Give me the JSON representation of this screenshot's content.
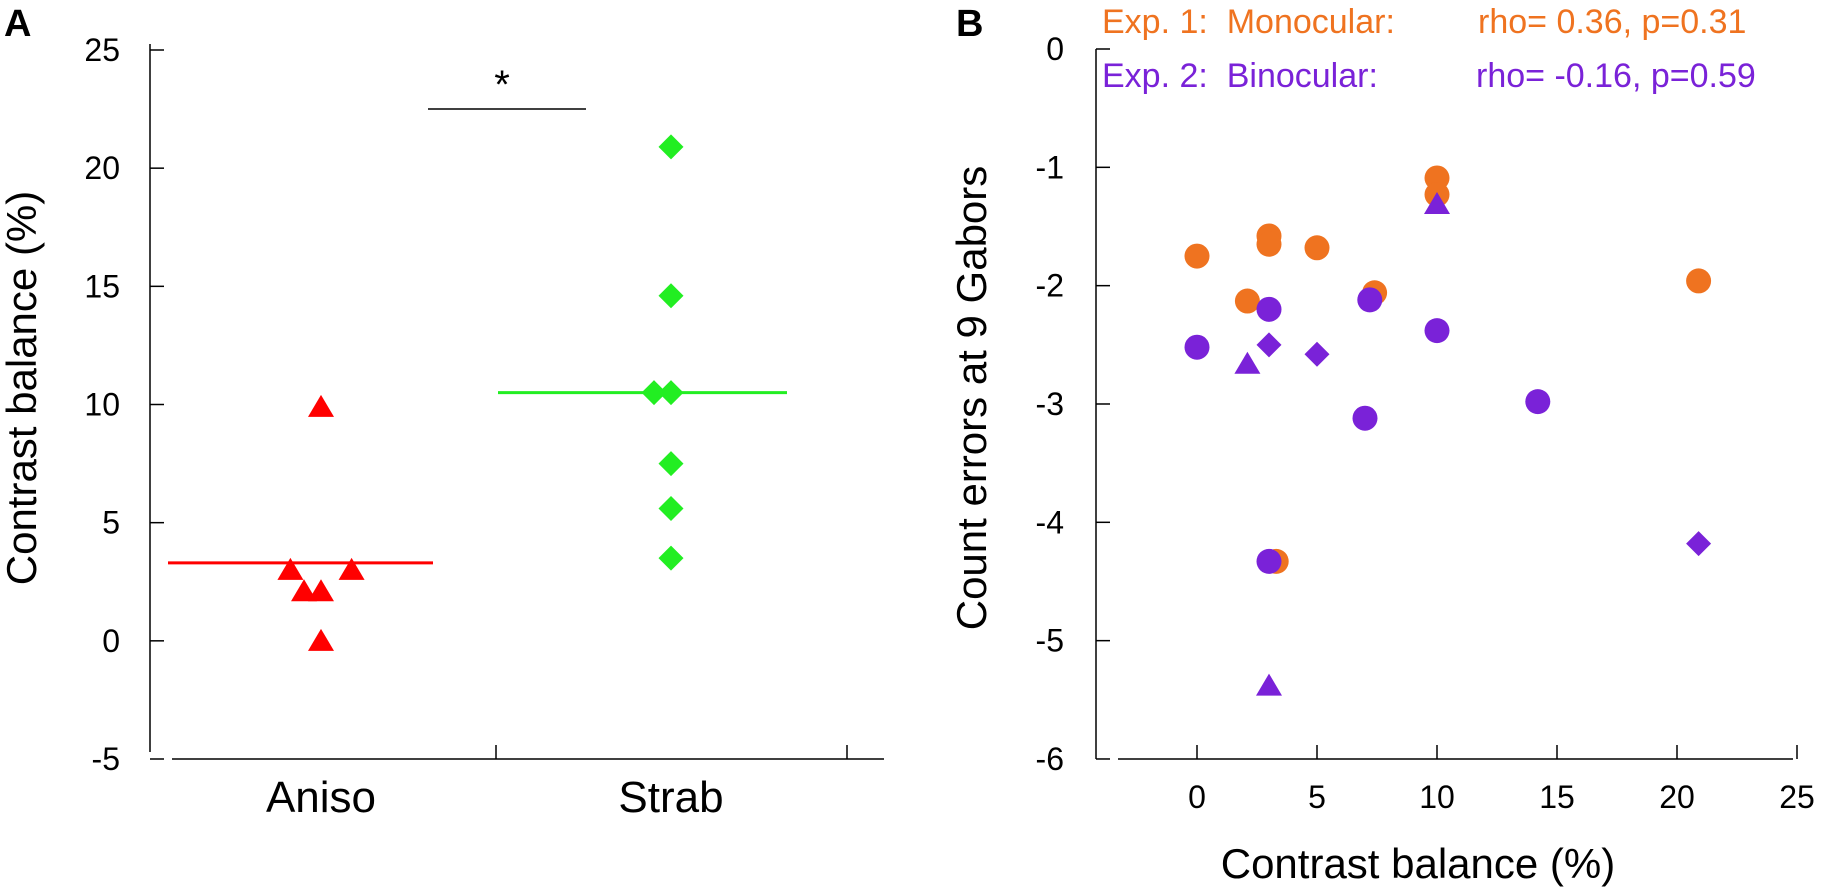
{
  "chart_data": [
    {
      "panel": "A",
      "type": "scatter",
      "title": "",
      "xlabel": "",
      "ylabel": "Contrast balance (%)",
      "ylim": [
        -5,
        25
      ],
      "yticks": [
        "-5",
        "0",
        "5",
        "10",
        "15",
        "20",
        "25"
      ],
      "categories": [
        "Aniso",
        "Strab"
      ],
      "significance": "*",
      "series": [
        {
          "name": "Aniso",
          "marker": "triangle",
          "color": "#ff0000",
          "points": [
            {
              "x": 0.0,
              "y": 9.9
            },
            {
              "x": -0.45,
              "y": 3.0
            },
            {
              "x": 0.45,
              "y": 3.0
            },
            {
              "x": -0.25,
              "y": 2.1
            },
            {
              "x": 0.0,
              "y": 2.1
            },
            {
              "x": 0.0,
              "y": 0.0
            }
          ],
          "mean": 3.3
        },
        {
          "name": "Strab",
          "marker": "diamond",
          "color": "#22ee22",
          "points": [
            {
              "x": 0.0,
              "y": 20.9
            },
            {
              "x": 0.0,
              "y": 14.6
            },
            {
              "x": -0.25,
              "y": 10.5
            },
            {
              "x": 0.0,
              "y": 10.5
            },
            {
              "x": 0.0,
              "y": 7.5
            },
            {
              "x": 0.0,
              "y": 5.6
            },
            {
              "x": 0.0,
              "y": 3.5
            }
          ],
          "mean": 10.5
        }
      ]
    },
    {
      "panel": "B",
      "type": "scatter",
      "title": "",
      "xlabel": "Contrast balance (%)",
      "ylabel": "Count errors at 9 Gabors",
      "xlim": [
        -3.3,
        25.5
      ],
      "ylim": [
        -6,
        0
      ],
      "xticks": [
        "0",
        "5",
        "10",
        "15",
        "20",
        "25"
      ],
      "yticks": [
        "0",
        "-1",
        "-2",
        "-3",
        "-4",
        "-5",
        "-6"
      ],
      "legend": [
        {
          "label": "Exp. 1:  Monocular:",
          "stats": "rho= 0.36, p=0.31",
          "color": "#ef7320"
        },
        {
          "label": "Exp. 2:  Binocular:",
          "stats": "rho= -0.16, p=0.59",
          "color": "#7a22d8"
        }
      ],
      "series": [
        {
          "name": "Exp. 1: Monocular",
          "color": "#ef7320",
          "points": [
            {
              "x": 0.0,
              "y": -1.75,
              "marker": "circle"
            },
            {
              "x": 2.1,
              "y": -2.13,
              "marker": "circle"
            },
            {
              "x": 3.0,
              "y": -1.58,
              "marker": "circle"
            },
            {
              "x": 3.0,
              "y": -1.65,
              "marker": "circle"
            },
            {
              "x": 5.0,
              "y": -1.68,
              "marker": "circle"
            },
            {
              "x": 7.4,
              "y": -2.06,
              "marker": "circle"
            },
            {
              "x": 10.0,
              "y": -1.09,
              "marker": "circle"
            },
            {
              "x": 10.0,
              "y": -1.23,
              "marker": "circle"
            },
            {
              "x": 20.9,
              "y": -1.96,
              "marker": "circle"
            },
            {
              "x": 3.3,
              "y": -4.33,
              "marker": "circle"
            }
          ]
        },
        {
          "name": "Exp. 2: Binocular",
          "color": "#7a22d8",
          "points": [
            {
              "x": 0.0,
              "y": -2.52,
              "marker": "circle"
            },
            {
              "x": 3.0,
              "y": -2.2,
              "marker": "circle"
            },
            {
              "x": 7.2,
              "y": -2.12,
              "marker": "circle"
            },
            {
              "x": 10.0,
              "y": -2.38,
              "marker": "circle"
            },
            {
              "x": 7.0,
              "y": -3.12,
              "marker": "circle"
            },
            {
              "x": 14.2,
              "y": -2.98,
              "marker": "circle"
            },
            {
              "x": 3.0,
              "y": -4.33,
              "marker": "circle"
            },
            {
              "x": 3.0,
              "y": -2.5,
              "marker": "diamond"
            },
            {
              "x": 5.0,
              "y": -2.58,
              "marker": "diamond"
            },
            {
              "x": 20.9,
              "y": -4.18,
              "marker": "diamond"
            },
            {
              "x": 2.1,
              "y": -2.66,
              "marker": "triangle"
            },
            {
              "x": 10.0,
              "y": -1.31,
              "marker": "triangle"
            },
            {
              "x": 3.0,
              "y": -5.38,
              "marker": "triangle"
            }
          ]
        }
      ]
    }
  ]
}
